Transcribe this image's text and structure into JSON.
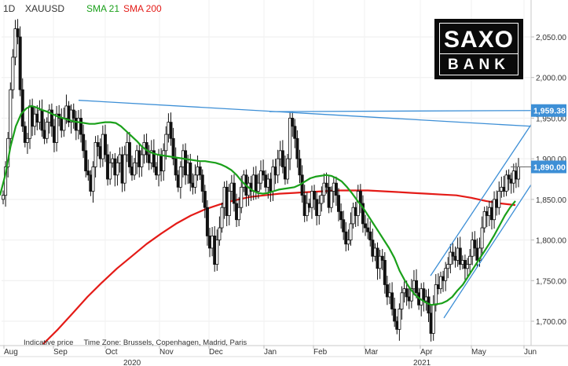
{
  "header": {
    "timeframe": "1D",
    "symbol": "XAUUSD",
    "sma21_label": "SMA 21",
    "sma200_label": "SMA 200"
  },
  "logo": {
    "line1": "SAXO",
    "line2": "BANK"
  },
  "footnote": {
    "indicative": "Indicative price",
    "timezone": "Time Zone: Brussels, Copenhagen, Madrid, Paris"
  },
  "colors": {
    "sma21": "#1aa01a",
    "sma200": "#e41b17",
    "trendline": "#3d8fd6",
    "candle_up": "#ffffff",
    "candle_down": "#111111",
    "tag": "#3d8fd6"
  },
  "chart_data": {
    "type": "candlestick",
    "instrument": "XAUUSD",
    "timeframe": "1D",
    "ylim": [
      1670,
      2080
    ],
    "y_ticks": [
      "2,050.00",
      "2,000.00",
      "1,950.00",
      "1,900.00",
      "1,850.00",
      "1,800.00",
      "1,750.00",
      "1,700.00"
    ],
    "x_months": [
      "Aug",
      "Sep",
      "Oct",
      "Nov",
      "Dec",
      "Jan",
      "Feb",
      "Mar",
      "Apr",
      "May",
      "Jun"
    ],
    "x_years": [
      "2020",
      "2021"
    ],
    "price_tags": [
      "1,959.38",
      "1,890.00"
    ],
    "series_close": [
      1855,
      1890,
      1925,
      1985,
      2025,
      2060,
      2050,
      1985,
      1940,
      1920,
      1925,
      1965,
      1940,
      1955,
      1945,
      1960,
      1935,
      1925,
      1945,
      1960,
      1940,
      1920,
      1955,
      1950,
      1935,
      1950,
      1965,
      1945,
      1960,
      1950,
      1935,
      1950,
      1930,
      1910,
      1885,
      1880,
      1860,
      1890,
      1920,
      1915,
      1900,
      1930,
      1905,
      1875,
      1895,
      1900,
      1880,
      1895,
      1905,
      1870,
      1905,
      1920,
      1890,
      1880,
      1895,
      1910,
      1890,
      1905,
      1920,
      1905,
      1895,
      1910,
      1890,
      1880,
      1905,
      1885,
      1910,
      1930,
      1945,
      1925,
      1900,
      1880,
      1865,
      1890,
      1910,
      1880,
      1895,
      1870,
      1865,
      1880,
      1890,
      1880,
      1860,
      1840,
      1805,
      1790,
      1805,
      1770,
      1800,
      1815,
      1840,
      1865,
      1830,
      1860,
      1870,
      1845,
      1825,
      1840,
      1865,
      1880,
      1855,
      1870,
      1860,
      1880,
      1860,
      1870,
      1885,
      1880,
      1865,
      1875,
      1860,
      1890,
      1880,
      1900,
      1910,
      1890,
      1875,
      1900,
      1950,
      1940,
      1925,
      1900,
      1880,
      1855,
      1830,
      1845,
      1840,
      1860,
      1850,
      1830,
      1845,
      1855,
      1870,
      1865,
      1840,
      1860,
      1870,
      1855,
      1835,
      1825,
      1810,
      1795,
      1800,
      1820,
      1840,
      1830,
      1860,
      1845,
      1820,
      1815,
      1810,
      1800,
      1780,
      1790,
      1765,
      1780,
      1775,
      1745,
      1730,
      1735,
      1715,
      1700,
      1690,
      1715,
      1735,
      1740,
      1730,
      1725,
      1740,
      1750,
      1735,
      1720,
      1740,
      1725,
      1730,
      1710,
      1685,
      1720,
      1745,
      1740,
      1755,
      1750,
      1765,
      1770,
      1785,
      1780,
      1775,
      1790,
      1770,
      1775,
      1765,
      1770,
      1780,
      1800,
      1790,
      1775,
      1790,
      1815,
      1835,
      1830,
      1840,
      1825,
      1850,
      1840,
      1860,
      1865,
      1860,
      1880,
      1875,
      1870,
      1885,
      1875,
      1890
    ],
    "series_sma21": [
      1855,
      1880,
      1915,
      1940,
      1955,
      1962,
      1965,
      1963,
      1960,
      1958,
      1955,
      1952,
      1950,
      1948,
      1946,
      1945,
      1944,
      1943,
      1943,
      1944,
      1945,
      1945,
      1944,
      1940,
      1934,
      1928,
      1922,
      1915,
      1910,
      1907,
      1905,
      1904,
      1903,
      1902,
      1901,
      1900,
      1899,
      1898,
      1897,
      1897,
      1896,
      1895,
      1893,
      1890,
      1886,
      1880,
      1872,
      1866,
      1861,
      1858,
      1857,
      1858,
      1860,
      1862,
      1863,
      1864,
      1865,
      1868,
      1872,
      1876,
      1878,
      1879,
      1880,
      1879,
      1876,
      1872,
      1865,
      1857,
      1848,
      1840,
      1830,
      1820,
      1810,
      1800,
      1790,
      1778,
      1762,
      1750,
      1740,
      1732,
      1727,
      1723,
      1720,
      1721,
      1722,
      1725,
      1730,
      1738,
      1745,
      1755,
      1765,
      1775,
      1785,
      1795,
      1806,
      1818,
      1830,
      1840,
      1848
    ],
    "series_sma200": [
      1672,
      1690,
      1710,
      1730,
      1748,
      1765,
      1780,
      1795,
      1808,
      1820,
      1830,
      1838,
      1844,
      1849,
      1853,
      1855,
      1857,
      1858,
      1859,
      1860,
      1861,
      1861,
      1861,
      1860,
      1859,
      1858,
      1857,
      1856,
      1855,
      1852,
      1848,
      1845,
      1843
    ],
    "trendlines": [
      {
        "from": [
          "late Aug 2020",
          1972
        ],
        "to": [
          "early Jun 2021",
          1940
        ]
      },
      {
        "from": [
          "early Jan 2021",
          1958
        ],
        "to": [
          "early Jun 2021",
          1959.38
        ]
      },
      {
        "from": [
          "early Apr 2021",
          1756
        ],
        "to": [
          "early Jun 2021",
          1942
        ]
      },
      {
        "from": [
          "mid Apr 2021",
          1704
        ],
        "to": [
          "early Jun 2021",
          1868
        ]
      }
    ]
  }
}
